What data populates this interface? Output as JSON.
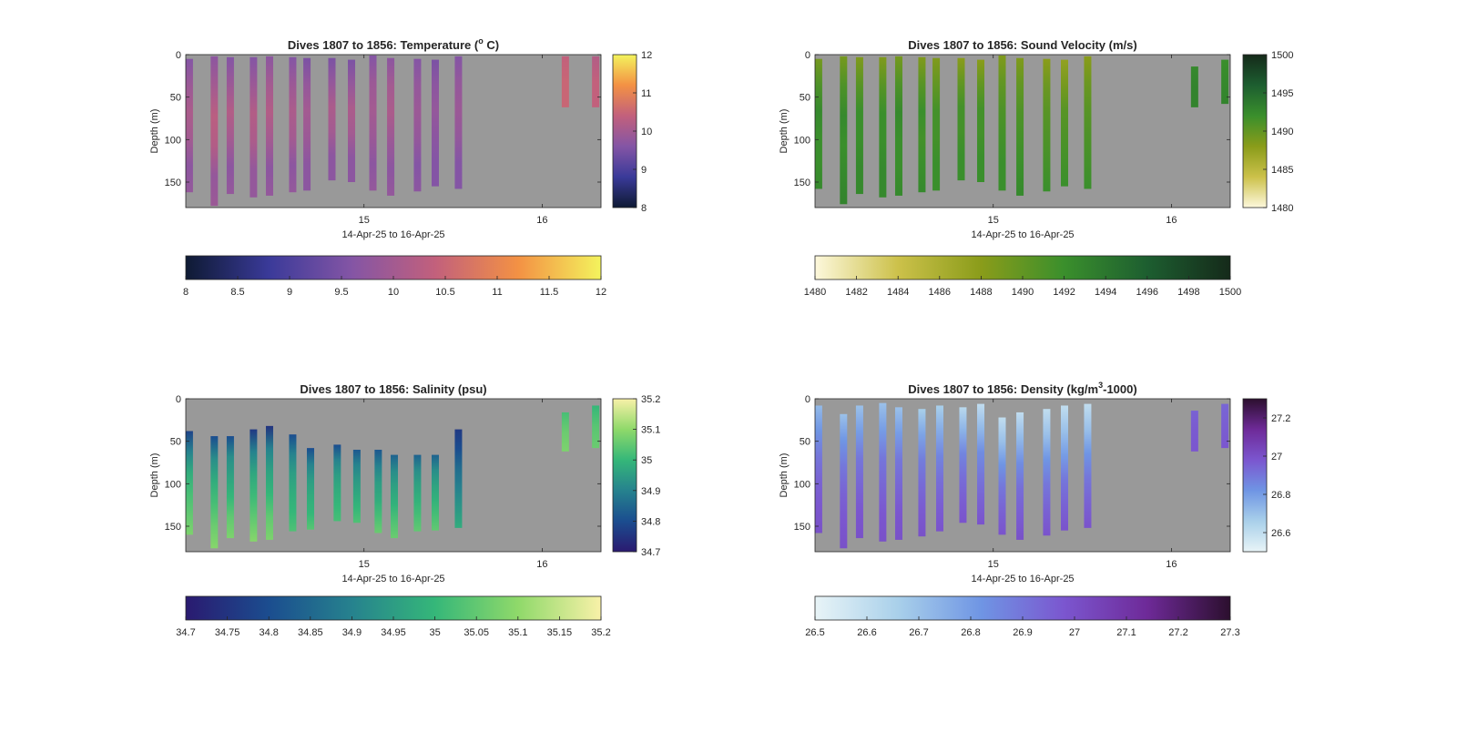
{
  "chart_data": [
    {
      "type": "heatmap",
      "variable": "temperature",
      "title": {
        "prefix": "Dives 1807 to 1856: Temperature (",
        "sup": "o",
        "suffix": " C)"
      },
      "xlabel": "14-Apr-25 to 16-Apr-25",
      "ylabel": "Depth (m)",
      "xlim": [
        14.0,
        16.33
      ],
      "ylim": [
        180,
        0
      ],
      "xticks": [
        15,
        16
      ],
      "yticks": [
        0,
        50,
        100,
        150
      ],
      "clim": [
        8,
        12
      ],
      "colormap": [
        "#0e1a33",
        "#3a3a99",
        "#8455a5",
        "#c2607c",
        "#f39144",
        "#f3f35d"
      ],
      "nan_color": "#999999",
      "side_colorbar_ticks": [
        8,
        9,
        10,
        11,
        12
      ],
      "bottom_colorbar_ticks": [
        8,
        8.5,
        9,
        9.5,
        10,
        10.5,
        11,
        11.5,
        12
      ],
      "profiles": [
        {
          "x": 14.02,
          "top": 5,
          "bottom": 162,
          "values": [
            9.6,
            9.9,
            10.1,
            10.0,
            9.7,
            9.8
          ]
        },
        {
          "x": 14.16,
          "top": 2,
          "bottom": 178,
          "values": [
            9.7,
            10.0,
            10.3,
            10.2,
            9.8,
            9.9
          ]
        },
        {
          "x": 14.25,
          "top": 3,
          "bottom": 164,
          "values": [
            9.6,
            9.9,
            10.2,
            10.0,
            9.7,
            9.8
          ]
        },
        {
          "x": 14.38,
          "top": 3,
          "bottom": 168,
          "values": [
            9.6,
            9.9,
            10.2,
            10.1,
            9.8,
            9.8
          ]
        },
        {
          "x": 14.47,
          "top": 2,
          "bottom": 166,
          "values": [
            9.7,
            10.0,
            10.2,
            10.0,
            9.7,
            9.8
          ]
        },
        {
          "x": 14.6,
          "top": 3,
          "bottom": 162,
          "values": [
            9.6,
            9.9,
            10.1,
            10.0,
            9.7,
            9.8
          ]
        },
        {
          "x": 14.68,
          "top": 4,
          "bottom": 160,
          "values": [
            9.5,
            9.8,
            10.0,
            9.9,
            9.7,
            9.7
          ]
        },
        {
          "x": 14.82,
          "top": 4,
          "bottom": 148,
          "values": [
            9.5,
            9.8,
            10.1,
            10.0,
            9.7,
            9.7
          ]
        },
        {
          "x": 14.93,
          "top": 6,
          "bottom": 150,
          "values": [
            9.5,
            9.8,
            10.1,
            10.0,
            9.7,
            9.7
          ]
        },
        {
          "x": 15.05,
          "top": 1,
          "bottom": 160,
          "values": [
            9.6,
            9.9,
            10.0,
            9.9,
            9.7,
            9.8
          ]
        },
        {
          "x": 15.15,
          "top": 4,
          "bottom": 166,
          "values": [
            9.7,
            10.0,
            10.1,
            9.9,
            9.7,
            9.8
          ]
        },
        {
          "x": 15.3,
          "top": 5,
          "bottom": 161,
          "values": [
            9.6,
            9.8,
            9.9,
            9.8,
            9.6,
            9.7
          ]
        },
        {
          "x": 15.4,
          "top": 6,
          "bottom": 155,
          "values": [
            9.5,
            9.7,
            9.8,
            9.7,
            9.6,
            9.6
          ]
        },
        {
          "x": 15.53,
          "top": 2,
          "bottom": 158,
          "values": [
            9.6,
            9.8,
            9.9,
            9.8,
            9.6,
            9.6
          ]
        },
        {
          "x": 16.13,
          "top": 2,
          "bottom": 62,
          "values": [
            10.4,
            10.5,
            10.5
          ]
        },
        {
          "x": 16.3,
          "top": 2,
          "bottom": 62,
          "values": [
            10.2,
            10.4,
            10.4
          ]
        }
      ]
    },
    {
      "type": "heatmap",
      "variable": "sound_velocity",
      "title": {
        "prefix": "Dives 1807 to 1856: Sound Velocity (m/s)",
        "sup": "",
        "suffix": ""
      },
      "xlabel": "14-Apr-25 to 16-Apr-25",
      "ylabel": "Depth (m)",
      "xlim": [
        14.0,
        16.33
      ],
      "ylim": [
        180,
        0
      ],
      "xticks": [
        15,
        16
      ],
      "yticks": [
        0,
        50,
        100,
        150
      ],
      "clim": [
        1480,
        1500
      ],
      "colormap": [
        "#fdf8dc",
        "#ccc14a",
        "#8a9c1a",
        "#3a8f2c",
        "#1d5e30",
        "#152a1a"
      ],
      "nan_color": "#999999",
      "side_colorbar_ticks": [
        1480,
        1485,
        1490,
        1495,
        1500
      ],
      "bottom_colorbar_ticks": [
        1480,
        1482,
        1484,
        1486,
        1488,
        1490,
        1492,
        1494,
        1496,
        1498,
        1500
      ],
      "profiles": [
        {
          "x": 14.02,
          "top": 5,
          "bottom": 158,
          "values": [
            1489.0,
            1491.0,
            1492.5,
            1492.0,
            1492.0,
            1492.5
          ]
        },
        {
          "x": 14.16,
          "top": 2,
          "bottom": 176,
          "values": [
            1489.0,
            1491.0,
            1492.5,
            1492.0,
            1492.5,
            1493.0
          ]
        },
        {
          "x": 14.25,
          "top": 3,
          "bottom": 164,
          "values": [
            1488.5,
            1490.5,
            1492.0,
            1492.0,
            1492.5,
            1492.5
          ]
        },
        {
          "x": 14.38,
          "top": 3,
          "bottom": 168,
          "values": [
            1488.5,
            1490.5,
            1492.0,
            1492.0,
            1492.5,
            1492.5
          ]
        },
        {
          "x": 14.47,
          "top": 2,
          "bottom": 166,
          "values": [
            1489.0,
            1491.0,
            1492.5,
            1492.0,
            1492.0,
            1492.5
          ]
        },
        {
          "x": 14.6,
          "top": 3,
          "bottom": 162,
          "values": [
            1488.5,
            1490.5,
            1492.0,
            1491.5,
            1492.0,
            1492.5
          ]
        },
        {
          "x": 14.68,
          "top": 4,
          "bottom": 160,
          "values": [
            1488.5,
            1490.0,
            1491.5,
            1491.5,
            1492.0,
            1492.0
          ]
        },
        {
          "x": 14.82,
          "top": 4,
          "bottom": 148,
          "values": [
            1488.0,
            1490.0,
            1491.5,
            1491.5,
            1492.0,
            1492.0
          ]
        },
        {
          "x": 14.93,
          "top": 6,
          "bottom": 150,
          "values": [
            1488.0,
            1490.0,
            1491.5,
            1491.5,
            1492.0,
            1492.0
          ]
        },
        {
          "x": 15.05,
          "top": 1,
          "bottom": 160,
          "values": [
            1488.5,
            1490.0,
            1491.0,
            1491.5,
            1492.0,
            1492.0
          ]
        },
        {
          "x": 15.15,
          "top": 4,
          "bottom": 166,
          "values": [
            1488.5,
            1490.0,
            1491.0,
            1491.5,
            1492.0,
            1492.5
          ]
        },
        {
          "x": 15.3,
          "top": 5,
          "bottom": 161,
          "values": [
            1488.0,
            1489.5,
            1490.5,
            1491.0,
            1491.5,
            1492.0
          ]
        },
        {
          "x": 15.4,
          "top": 6,
          "bottom": 155,
          "values": [
            1487.5,
            1489.0,
            1490.5,
            1491.0,
            1491.5,
            1492.0
          ]
        },
        {
          "x": 15.53,
          "top": 2,
          "bottom": 158,
          "values": [
            1488.0,
            1489.5,
            1490.5,
            1491.0,
            1491.5,
            1492.0
          ]
        },
        {
          "x": 16.13,
          "top": 14,
          "bottom": 62,
          "values": [
            1492.5,
            1493.0,
            1493.0
          ]
        },
        {
          "x": 16.3,
          "top": 6,
          "bottom": 58,
          "values": [
            1492.0,
            1492.5,
            1493.0
          ]
        }
      ]
    },
    {
      "type": "heatmap",
      "variable": "salinity",
      "title": {
        "prefix": "Dives 1807 to 1856: Salinity (psu)",
        "sup": "",
        "suffix": ""
      },
      "xlabel": "14-Apr-25 to 16-Apr-25",
      "ylabel": "Depth (m)",
      "xlim": [
        14.0,
        16.33
      ],
      "ylim": [
        180,
        0
      ],
      "xticks": [
        15,
        16
      ],
      "yticks": [
        0,
        50,
        100,
        150
      ],
      "clim": [
        34.7,
        35.2
      ],
      "colormap": [
        "#2a1a70",
        "#1b4d8f",
        "#26828e",
        "#35b779",
        "#8fd96a",
        "#f8f1a8"
      ],
      "nan_color": "#999999",
      "side_colorbar_ticks": [
        34.7,
        34.8,
        34.9,
        35,
        35.1,
        35.2
      ],
      "bottom_colorbar_ticks": [
        34.7,
        34.75,
        34.8,
        34.85,
        34.9,
        34.95,
        35,
        35.05,
        35.1,
        35.15,
        35.2
      ],
      "profiles": [
        {
          "x": 14.02,
          "top": 38,
          "bottom": 160,
          "values": [
            34.78,
            34.9,
            34.98,
            35.02,
            35.05,
            35.08
          ]
        },
        {
          "x": 14.16,
          "top": 44,
          "bottom": 176,
          "values": [
            34.8,
            34.92,
            34.98,
            35.02,
            35.06,
            35.09
          ]
        },
        {
          "x": 14.25,
          "top": 44,
          "bottom": 164,
          "values": [
            34.8,
            34.92,
            34.96,
            35.0,
            35.05,
            35.08
          ]
        },
        {
          "x": 14.38,
          "top": 36,
          "bottom": 168,
          "values": [
            34.76,
            34.9,
            34.97,
            35.01,
            35.05,
            35.09
          ]
        },
        {
          "x": 14.47,
          "top": 32,
          "bottom": 166,
          "values": [
            34.75,
            34.9,
            34.96,
            35.0,
            35.05,
            35.08
          ]
        },
        {
          "x": 14.6,
          "top": 42,
          "bottom": 156,
          "values": [
            34.8,
            34.9,
            34.95,
            34.98,
            35.0,
            35.03
          ]
        },
        {
          "x": 14.7,
          "top": 58,
          "bottom": 154,
          "values": [
            34.8,
            34.9,
            34.95,
            34.98,
            35.0,
            35.04
          ]
        },
        {
          "x": 14.85,
          "top": 54,
          "bottom": 144,
          "values": [
            34.8,
            34.9,
            34.95,
            34.98,
            35.0,
            35.02
          ]
        },
        {
          "x": 14.96,
          "top": 60,
          "bottom": 146,
          "values": [
            34.82,
            34.9,
            34.94,
            34.97,
            35.0,
            35.03
          ]
        },
        {
          "x": 15.08,
          "top": 60,
          "bottom": 158,
          "values": [
            34.82,
            34.9,
            34.95,
            34.98,
            35.02,
            35.06
          ]
        },
        {
          "x": 15.17,
          "top": 66,
          "bottom": 164,
          "values": [
            34.84,
            34.92,
            34.96,
            34.99,
            35.03,
            35.06
          ]
        },
        {
          "x": 15.3,
          "top": 66,
          "bottom": 156,
          "values": [
            34.84,
            34.92,
            34.96,
            34.99,
            35.02,
            35.05
          ]
        },
        {
          "x": 15.4,
          "top": 66,
          "bottom": 155,
          "values": [
            34.84,
            34.92,
            34.96,
            34.99,
            35.02,
            35.05
          ]
        },
        {
          "x": 15.53,
          "top": 36,
          "bottom": 152,
          "values": [
            34.76,
            34.8,
            34.86,
            34.9,
            34.94,
            34.98
          ]
        },
        {
          "x": 16.13,
          "top": 16,
          "bottom": 62,
          "values": [
            35.02,
            35.06,
            35.08
          ]
        },
        {
          "x": 16.3,
          "top": 8,
          "bottom": 58,
          "values": [
            35.0,
            35.04,
            35.06
          ]
        }
      ]
    },
    {
      "type": "heatmap",
      "variable": "density",
      "title": {
        "prefix": "Dives 1807 to 1856: Density (kg/m",
        "sup": "3",
        "suffix": "-1000)"
      },
      "xlabel": "14-Apr-25 to 16-Apr-25",
      "ylabel": "Depth (m)",
      "xlim": [
        14.0,
        16.33
      ],
      "ylim": [
        180,
        0
      ],
      "xticks": [
        15,
        16
      ],
      "yticks": [
        0,
        50,
        100,
        150
      ],
      "clim": [
        26.5,
        27.3
      ],
      "colormap": [
        "#e8f4f7",
        "#a9d0ea",
        "#6f95e4",
        "#7b56cf",
        "#6e2a98",
        "#2c0f2e"
      ],
      "nan_color": "#999999",
      "side_colorbar_ticks": [
        26.6,
        26.8,
        27,
        27.2
      ],
      "bottom_colorbar_ticks": [
        26.5,
        26.6,
        26.7,
        26.8,
        26.9,
        27,
        27.1,
        27.2,
        27.3
      ],
      "profiles": [
        {
          "x": 14.02,
          "top": 8,
          "bottom": 158,
          "values": [
            26.72,
            26.82,
            26.9,
            26.95,
            26.98,
            27.0
          ]
        },
        {
          "x": 14.16,
          "top": 18,
          "bottom": 176,
          "values": [
            26.7,
            26.82,
            26.9,
            26.95,
            26.98,
            27.0
          ]
        },
        {
          "x": 14.25,
          "top": 8,
          "bottom": 164,
          "values": [
            26.7,
            26.8,
            26.9,
            26.94,
            26.98,
            27.0
          ]
        },
        {
          "x": 14.38,
          "top": 5,
          "bottom": 168,
          "values": [
            26.7,
            26.8,
            26.9,
            26.94,
            26.98,
            27.0
          ]
        },
        {
          "x": 14.47,
          "top": 10,
          "bottom": 166,
          "values": [
            26.7,
            26.8,
            26.9,
            26.94,
            26.98,
            27.0
          ]
        },
        {
          "x": 14.6,
          "top": 12,
          "bottom": 162,
          "values": [
            26.66,
            26.78,
            26.88,
            26.93,
            26.97,
            27.0
          ]
        },
        {
          "x": 14.7,
          "top": 8,
          "bottom": 156,
          "values": [
            26.66,
            26.76,
            26.86,
            26.92,
            26.96,
            26.99
          ]
        },
        {
          "x": 14.83,
          "top": 10,
          "bottom": 146,
          "values": [
            26.62,
            26.74,
            26.86,
            26.92,
            26.96,
            26.99
          ]
        },
        {
          "x": 14.93,
          "top": 6,
          "bottom": 148,
          "values": [
            26.6,
            26.72,
            26.84,
            26.9,
            26.95,
            26.99
          ]
        },
        {
          "x": 15.05,
          "top": 22,
          "bottom": 160,
          "values": [
            26.6,
            26.7,
            26.82,
            26.9,
            26.95,
            26.99
          ]
        },
        {
          "x": 15.15,
          "top": 16,
          "bottom": 166,
          "values": [
            26.6,
            26.72,
            26.84,
            26.92,
            26.96,
            27.0
          ]
        },
        {
          "x": 15.3,
          "top": 12,
          "bottom": 161,
          "values": [
            26.6,
            26.7,
            26.82,
            26.9,
            26.95,
            26.99
          ]
        },
        {
          "x": 15.4,
          "top": 8,
          "bottom": 155,
          "values": [
            26.6,
            26.7,
            26.8,
            26.9,
            26.95,
            26.99
          ]
        },
        {
          "x": 15.53,
          "top": 6,
          "bottom": 152,
          "values": [
            26.6,
            26.7,
            26.82,
            26.9,
            26.95,
            26.99
          ]
        },
        {
          "x": 16.13,
          "top": 14,
          "bottom": 62,
          "values": [
            26.95,
            26.97,
            26.98
          ]
        },
        {
          "x": 16.3,
          "top": 6,
          "bottom": 58,
          "values": [
            26.94,
            26.96,
            26.98
          ]
        }
      ]
    }
  ]
}
